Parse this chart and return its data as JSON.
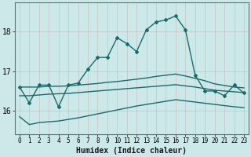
{
  "xlabel": "Humidex (Indice chaleur)",
  "ylabel": "",
  "background_color": "#cce8e8",
  "grid_color": "#b0d0d0",
  "line_color": "#1a6b6b",
  "xlim": [
    -0.5,
    23.5
  ],
  "ylim": [
    15.4,
    18.75
  ],
  "yticks": [
    16,
    17,
    18
  ],
  "xticks": [
    0,
    1,
    2,
    3,
    4,
    5,
    6,
    7,
    8,
    9,
    10,
    11,
    12,
    13,
    14,
    15,
    16,
    17,
    18,
    19,
    20,
    21,
    22,
    23
  ],
  "series": [
    {
      "x": [
        0,
        1,
        2,
        3,
        4,
        5,
        6,
        7,
        8,
        9,
        10,
        11,
        12,
        13,
        14,
        15,
        16,
        17,
        18,
        19,
        20,
        21,
        22,
        23
      ],
      "y": [
        16.6,
        16.2,
        16.65,
        16.65,
        16.1,
        16.65,
        16.7,
        17.05,
        17.35,
        17.35,
        17.85,
        17.7,
        17.5,
        18.05,
        18.25,
        18.3,
        18.4,
        18.05,
        16.9,
        16.5,
        16.5,
        16.38,
        16.65,
        16.45
      ],
      "marker": true,
      "linewidth": 1.0
    },
    {
      "x": [
        0,
        1,
        2,
        3,
        4,
        5,
        6,
        7,
        8,
        9,
        10,
        11,
        12,
        13,
        14,
        15,
        16,
        17,
        18,
        19,
        20,
        21,
        22,
        23
      ],
      "y": [
        16.6,
        16.6,
        16.6,
        16.62,
        16.62,
        16.63,
        16.65,
        16.67,
        16.69,
        16.72,
        16.74,
        16.77,
        16.8,
        16.83,
        16.87,
        16.9,
        16.93,
        16.88,
        16.82,
        16.76,
        16.68,
        16.64,
        16.6,
        16.58
      ],
      "marker": false,
      "linewidth": 1.0
    },
    {
      "x": [
        0,
        1,
        2,
        3,
        4,
        5,
        6,
        7,
        8,
        9,
        10,
        11,
        12,
        13,
        14,
        15,
        16,
        17,
        18,
        19,
        20,
        21,
        22,
        23
      ],
      "y": [
        16.38,
        16.38,
        16.4,
        16.42,
        16.43,
        16.44,
        16.46,
        16.48,
        16.5,
        16.52,
        16.54,
        16.56,
        16.58,
        16.6,
        16.62,
        16.64,
        16.66,
        16.63,
        16.6,
        16.56,
        16.52,
        16.5,
        16.48,
        16.46
      ],
      "marker": false,
      "linewidth": 1.0
    },
    {
      "x": [
        0,
        1,
        2,
        3,
        4,
        5,
        6,
        7,
        8,
        9,
        10,
        11,
        12,
        13,
        14,
        15,
        16,
        17,
        18,
        19,
        20,
        21,
        22,
        23
      ],
      "y": [
        15.85,
        15.65,
        15.7,
        15.72,
        15.74,
        15.78,
        15.82,
        15.87,
        15.92,
        15.97,
        16.02,
        16.07,
        16.12,
        16.16,
        16.2,
        16.24,
        16.28,
        16.25,
        16.22,
        16.19,
        16.16,
        16.13,
        16.1,
        16.08
      ],
      "marker": false,
      "linewidth": 1.0
    }
  ]
}
